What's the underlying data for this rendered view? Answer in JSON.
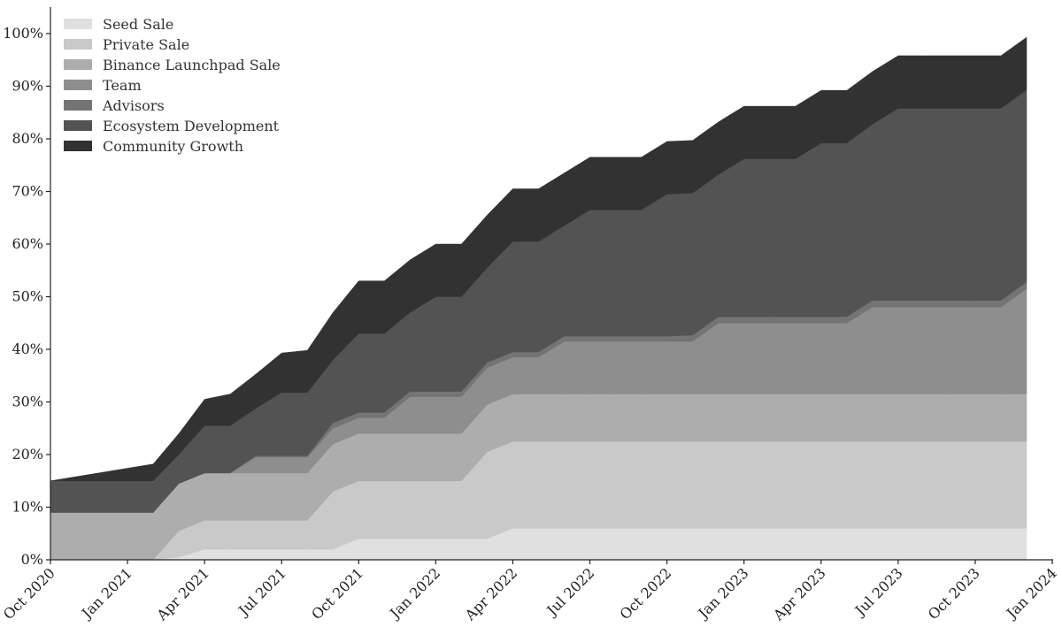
{
  "chart_data": {
    "type": "area",
    "stacked": true,
    "x": [
      "2020-10",
      "2020-11",
      "2020-12",
      "2021-01",
      "2021-02",
      "2021-03",
      "2021-04",
      "2021-05",
      "2021-06",
      "2021-07",
      "2021-08",
      "2021-09",
      "2021-10",
      "2021-11",
      "2021-12",
      "2022-01",
      "2022-02",
      "2022-03",
      "2022-04",
      "2022-05",
      "2022-06",
      "2022-07",
      "2022-08",
      "2022-09",
      "2022-10",
      "2022-11",
      "2022-12",
      "2023-01",
      "2023-02",
      "2023-03",
      "2023-04",
      "2023-05",
      "2023-06",
      "2023-07",
      "2023-08",
      "2023-09",
      "2023-10",
      "2023-11",
      "2023-12"
    ],
    "xtick_labels": [
      "Oct 2020",
      "Jan 2021",
      "Apr 2021",
      "Jul 2021",
      "Oct 2021",
      "Jan 2022",
      "Apr 2022",
      "Jul 2022",
      "Oct 2022",
      "Jan 2023",
      "Apr 2023",
      "Jul 2023",
      "Oct 2023",
      "Jan 2024"
    ],
    "ytick_labels": [
      "0%",
      "10%",
      "20%",
      "30%",
      "40%",
      "50%",
      "60%",
      "70%",
      "80%",
      "90%",
      "100%"
    ],
    "ylim": [
      0,
      100
    ],
    "legend_position": "top-left",
    "grid": false,
    "series": [
      {
        "name": "Seed Sale",
        "color": "#e0e0e0",
        "values": [
          0,
          0,
          0,
          0,
          0,
          0.5,
          2,
          2,
          2,
          2,
          2,
          2,
          4,
          4,
          4,
          4,
          4,
          4,
          6,
          6,
          6,
          6,
          6,
          6,
          6,
          6,
          6,
          6,
          6,
          6,
          6,
          6,
          6,
          6,
          6,
          6,
          6,
          6,
          6
        ]
      },
      {
        "name": "Private Sale",
        "color": "#c9c9c9",
        "values": [
          0,
          0,
          0,
          0,
          0,
          5,
          5.5,
          5.5,
          5.5,
          5.5,
          5.5,
          11,
          11,
          11,
          11,
          11,
          11,
          16.5,
          16.5,
          16.5,
          16.5,
          16.5,
          16.5,
          16.5,
          16.5,
          16.5,
          16.5,
          16.5,
          16.5,
          16.5,
          16.5,
          16.5,
          16.5,
          16.5,
          16.5,
          16.5,
          16.5,
          16.5,
          16.5
        ]
      },
      {
        "name": "Binance Launchpad Sale",
        "color": "#adadad",
        "values": [
          9,
          9,
          9,
          9,
          9,
          9,
          9,
          9,
          9,
          9,
          9,
          9,
          9,
          9,
          9,
          9,
          9,
          9,
          9,
          9,
          9,
          9,
          9,
          9,
          9,
          9,
          9,
          9,
          9,
          9,
          9,
          9,
          9,
          9,
          9,
          9,
          9,
          9,
          9
        ]
      },
      {
        "name": "Team",
        "color": "#8e8e8e",
        "values": [
          0,
          0,
          0,
          0,
          0,
          0,
          0,
          0,
          3,
          3,
          3,
          3,
          3,
          3,
          7,
          7,
          7,
          7,
          7,
          7,
          10,
          10,
          10,
          10,
          10,
          10,
          13.5,
          13.5,
          13.5,
          13.5,
          13.5,
          13.5,
          16.5,
          16.5,
          16.5,
          16.5,
          16.5,
          16.5,
          20
        ]
      },
      {
        "name": "Advisors",
        "color": "#747474",
        "values": [
          0,
          0,
          0,
          0,
          0,
          0,
          0,
          0,
          0.3,
          0.3,
          0.3,
          1,
          1,
          1,
          1,
          1,
          1,
          1,
          1,
          1,
          1,
          1,
          1,
          1,
          1,
          1.2,
          1.2,
          1.2,
          1.2,
          1.2,
          1.2,
          1.2,
          1.3,
          1.3,
          1.3,
          1.3,
          1.3,
          1.3,
          1.3
        ]
      },
      {
        "name": "Ecosystem Development",
        "color": "#535353",
        "values": [
          6,
          6,
          6,
          6,
          6,
          5.5,
          9,
          9,
          9,
          12,
          12,
          12,
          15,
          15,
          15,
          18,
          18,
          18,
          21,
          21,
          21,
          24,
          24,
          24,
          27,
          27,
          27,
          30,
          30,
          30,
          33,
          33,
          33.5,
          36.5,
          36.5,
          36.5,
          36.5,
          36.5,
          36.5
        ]
      },
      {
        "name": "Community Growth",
        "color": "#323232",
        "values": [
          0,
          0.8,
          1.6,
          2.4,
          3.2,
          4,
          5,
          6,
          6.5,
          7.5,
          8,
          9,
          10,
          10,
          10,
          10,
          10,
          10,
          10,
          10,
          10,
          10,
          10,
          10,
          10,
          10,
          10,
          10,
          10,
          10,
          10,
          10,
          10,
          10,
          10,
          10,
          10,
          10,
          10
        ]
      }
    ]
  }
}
